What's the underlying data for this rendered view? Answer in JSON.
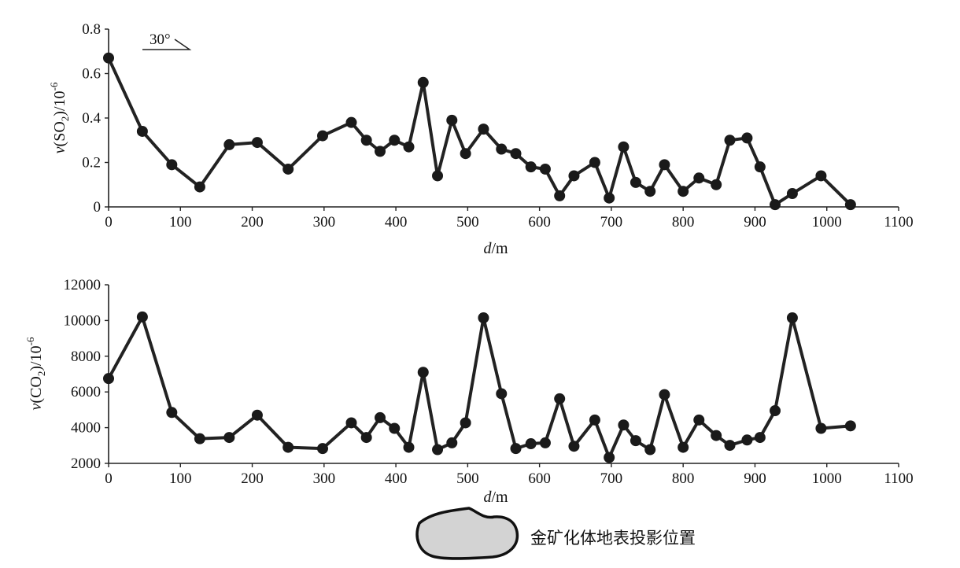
{
  "chart_data": [
    {
      "type": "line",
      "xlabel_var": "d",
      "xlabel_unit": "/m",
      "ylabel_var": "v",
      "ylabel_species": "(SO",
      "ylabel_sub": "2",
      "ylabel_rest": ")/10",
      "ylabel_exp": "-6",
      "xlim": [
        0,
        1100
      ],
      "ylim": [
        0,
        0.8
      ],
      "xticks": [
        0,
        100,
        200,
        300,
        400,
        500,
        600,
        700,
        800,
        900,
        1000,
        1100
      ],
      "yticks": [
        0,
        0.2,
        0.4,
        0.6,
        0.8
      ],
      "ytick_labels": [
        "0",
        "0.2",
        "0.4",
        "0.6",
        "0.8"
      ],
      "annotation": "30°",
      "x": [
        0,
        47,
        88,
        127,
        168,
        207,
        250,
        298,
        338,
        359,
        378,
        398,
        418,
        438,
        458,
        478,
        497,
        522,
        547,
        567,
        588,
        608,
        628,
        648,
        677,
        697,
        717,
        734,
        754,
        774,
        800,
        822,
        846,
        865,
        889,
        907,
        928,
        952,
        992,
        1033
      ],
      "values": [
        0.67,
        0.34,
        0.19,
        0.09,
        0.28,
        0.29,
        0.17,
        0.32,
        0.38,
        0.3,
        0.25,
        0.3,
        0.27,
        0.56,
        0.14,
        0.39,
        0.24,
        0.35,
        0.26,
        0.24,
        0.18,
        0.17,
        0.05,
        0.14,
        0.2,
        0.04,
        0.27,
        0.11,
        0.07,
        0.19,
        0.07,
        0.13,
        0.1,
        0.3,
        0.31,
        0.18,
        0.01,
        0.06,
        0.14,
        0.01
      ]
    },
    {
      "type": "line",
      "xlabel_var": "d",
      "xlabel_unit": "/m",
      "ylabel_var": "v",
      "ylabel_species": "(CO",
      "ylabel_sub": "2",
      "ylabel_rest": ")/10",
      "ylabel_exp": "-6",
      "xlim": [
        0,
        1100
      ],
      "ylim": [
        2000,
        12000
      ],
      "xticks": [
        0,
        100,
        200,
        300,
        400,
        500,
        600,
        700,
        800,
        900,
        1000,
        1100
      ],
      "yticks": [
        2000,
        4000,
        6000,
        8000,
        10000,
        12000
      ],
      "ytick_labels": [
        "2000",
        "4000",
        "6000",
        "8000",
        "10000",
        "12000"
      ],
      "x": [
        0,
        47,
        88,
        127,
        168,
        207,
        250,
        298,
        338,
        359,
        378,
        398,
        418,
        438,
        458,
        478,
        497,
        522,
        547,
        567,
        588,
        608,
        628,
        648,
        677,
        697,
        717,
        734,
        754,
        774,
        800,
        822,
        846,
        865,
        889,
        907,
        928,
        952,
        992,
        1033
      ],
      "values": [
        6750,
        10200,
        4850,
        3380,
        3450,
        4700,
        2900,
        2830,
        4270,
        3450,
        4560,
        3960,
        2900,
        7100,
        2770,
        3150,
        4270,
        10150,
        5900,
        2830,
        3100,
        3150,
        5620,
        2960,
        4430,
        2330,
        4150,
        3270,
        2770,
        5850,
        2900,
        4430,
        3560,
        3010,
        3310,
        3450,
        4950,
        10150,
        3960,
        4100
      ]
    }
  ],
  "legend": {
    "label": "金矿化体地表投影位置",
    "fill_color": "#d3d3d3",
    "stroke_color": "#111111"
  }
}
